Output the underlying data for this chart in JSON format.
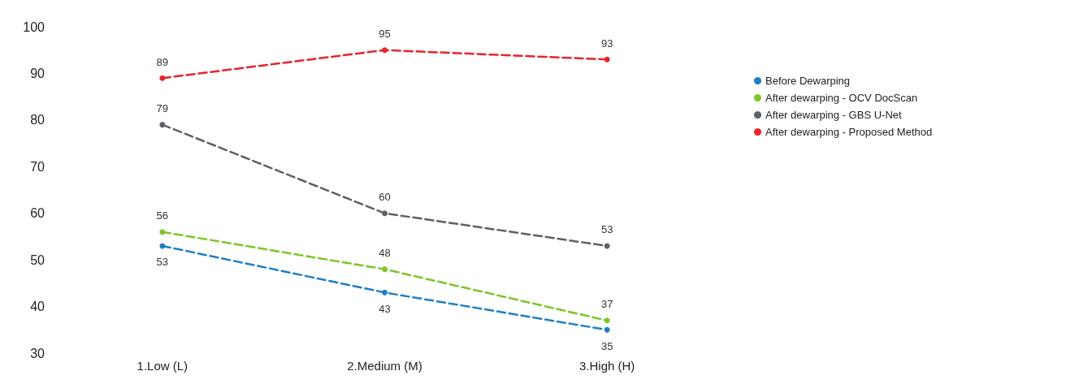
{
  "chart_data": {
    "type": "line",
    "categories": [
      "1.Low (L)",
      "2.Medium (M)",
      "3.High (H)"
    ],
    "series": [
      {
        "name": "Before Dewarping",
        "color": "#1f7fc4",
        "values": [
          53,
          43,
          35
        ]
      },
      {
        "name": "After dewarping - OCV DocScan",
        "color": "#7dc62a",
        "values": [
          56,
          48,
          37
        ]
      },
      {
        "name": "After dewarping - GBS U-Net",
        "color": "#5b6168",
        "values": [
          79,
          60,
          53
        ]
      },
      {
        "name": "After dewarping - Proposed Method",
        "color": "#e8232a",
        "values": [
          89,
          95,
          93
        ]
      }
    ],
    "ylim": [
      30,
      100
    ],
    "yticks": [
      30,
      40,
      50,
      60,
      70,
      80,
      90,
      100
    ],
    "grid": false,
    "legend": "right",
    "marker": "circle",
    "line_style": "dashed",
    "data_labels": true
  }
}
